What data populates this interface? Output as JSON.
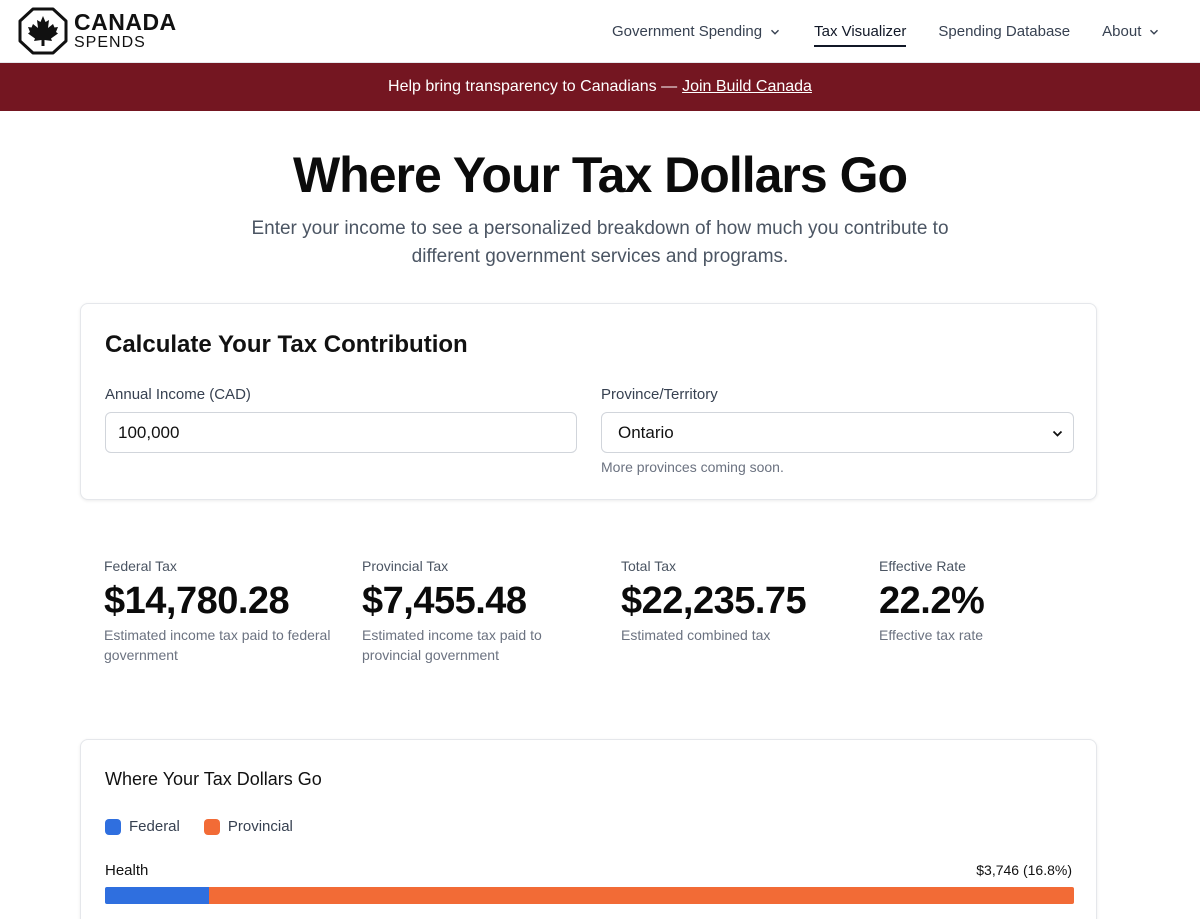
{
  "header": {
    "logo": {
      "line1": "CANADA",
      "line2": "SPENDS"
    },
    "nav": [
      {
        "label": "Government Spending",
        "has_dropdown": true,
        "active": false
      },
      {
        "label": "Tax Visualizer",
        "has_dropdown": false,
        "active": true
      },
      {
        "label": "Spending Database",
        "has_dropdown": false,
        "active": false
      },
      {
        "label": "About",
        "has_dropdown": true,
        "active": false
      }
    ]
  },
  "banner": {
    "text": "Help bring transparency to Canadians —",
    "link": "Join Build Canada",
    "background": "#741621"
  },
  "hero": {
    "title": "Where Your Tax Dollars Go",
    "subtitle": "Enter your income to see a personalized breakdown of how much you contribute to different government services and programs."
  },
  "calculator": {
    "title": "Calculate Your Tax Contribution",
    "income_label": "Annual Income (CAD)",
    "income_value": "100,000",
    "province_label": "Province/Territory",
    "province_value": "Ontario",
    "province_note": "More provinces coming soon."
  },
  "stats": [
    {
      "label": "Federal Tax",
      "value": "$14,780.28",
      "desc": "Estimated income tax paid to federal government"
    },
    {
      "label": "Provincial Tax",
      "value": "$7,455.48",
      "desc": "Estimated income tax paid to provincial government"
    },
    {
      "label": "Total Tax",
      "value": "$22,235.75",
      "desc": "Estimated combined tax"
    },
    {
      "label": "Effective Rate",
      "value": "22.2%",
      "desc": "Effective tax rate"
    }
  ],
  "breakdown": {
    "title": "Where Your Tax Dollars Go",
    "legend": [
      {
        "label": "Federal",
        "color": "#2f6fdf"
      },
      {
        "label": "Provincial",
        "color": "#f26b36"
      }
    ],
    "rows": [
      {
        "label": "Health",
        "value": "$3,746 (16.8%)",
        "federal_fraction": 0.107
      }
    ]
  }
}
